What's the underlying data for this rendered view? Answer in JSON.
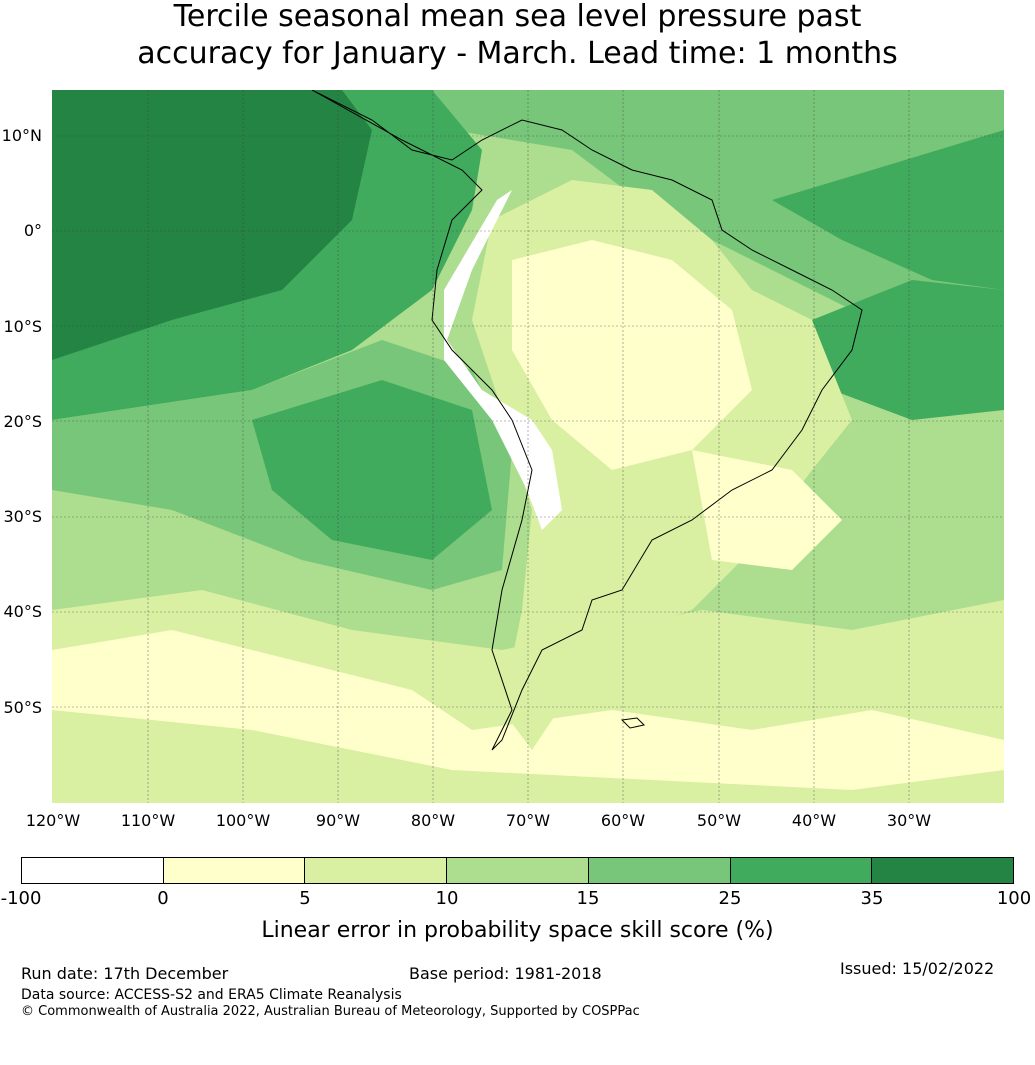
{
  "title": {
    "line1": "Tercile seasonal mean sea level pressure past",
    "line2": "accuracy for January - March. Lead time: 1 months"
  },
  "map": {
    "latitude_labels": [
      "10°N",
      "0°",
      "10°S",
      "20°S",
      "30°S",
      "40°S",
      "50°S"
    ],
    "longitude_labels": [
      "120°W",
      "110°W",
      "100°W",
      "90°W",
      "80°W",
      "70°W",
      "60°W",
      "50°W",
      "40°W",
      "30°W"
    ]
  },
  "colorbar": {
    "ticks": [
      "-100",
      "0",
      "5",
      "10",
      "15",
      "25",
      "35",
      "100"
    ],
    "colors": [
      "#ffffff",
      "#ffffcc",
      "#d9f0a3",
      "#addd8e",
      "#78c679",
      "#41ab5d",
      "#238443"
    ],
    "label": "Linear error in probability space skill score (%)"
  },
  "footer": {
    "run_date": "Run date: 17th December",
    "base_period": "Base period: 1981-2018",
    "issued": "Issued: 15/02/2022",
    "data_source": "Data source: ACCESS-S2 and ERA5 Climate Reanalysis",
    "copyright": "© Commonwealth of Australia 2022, Australian Bureau of Meteorology, Supported by COSPPac"
  }
}
